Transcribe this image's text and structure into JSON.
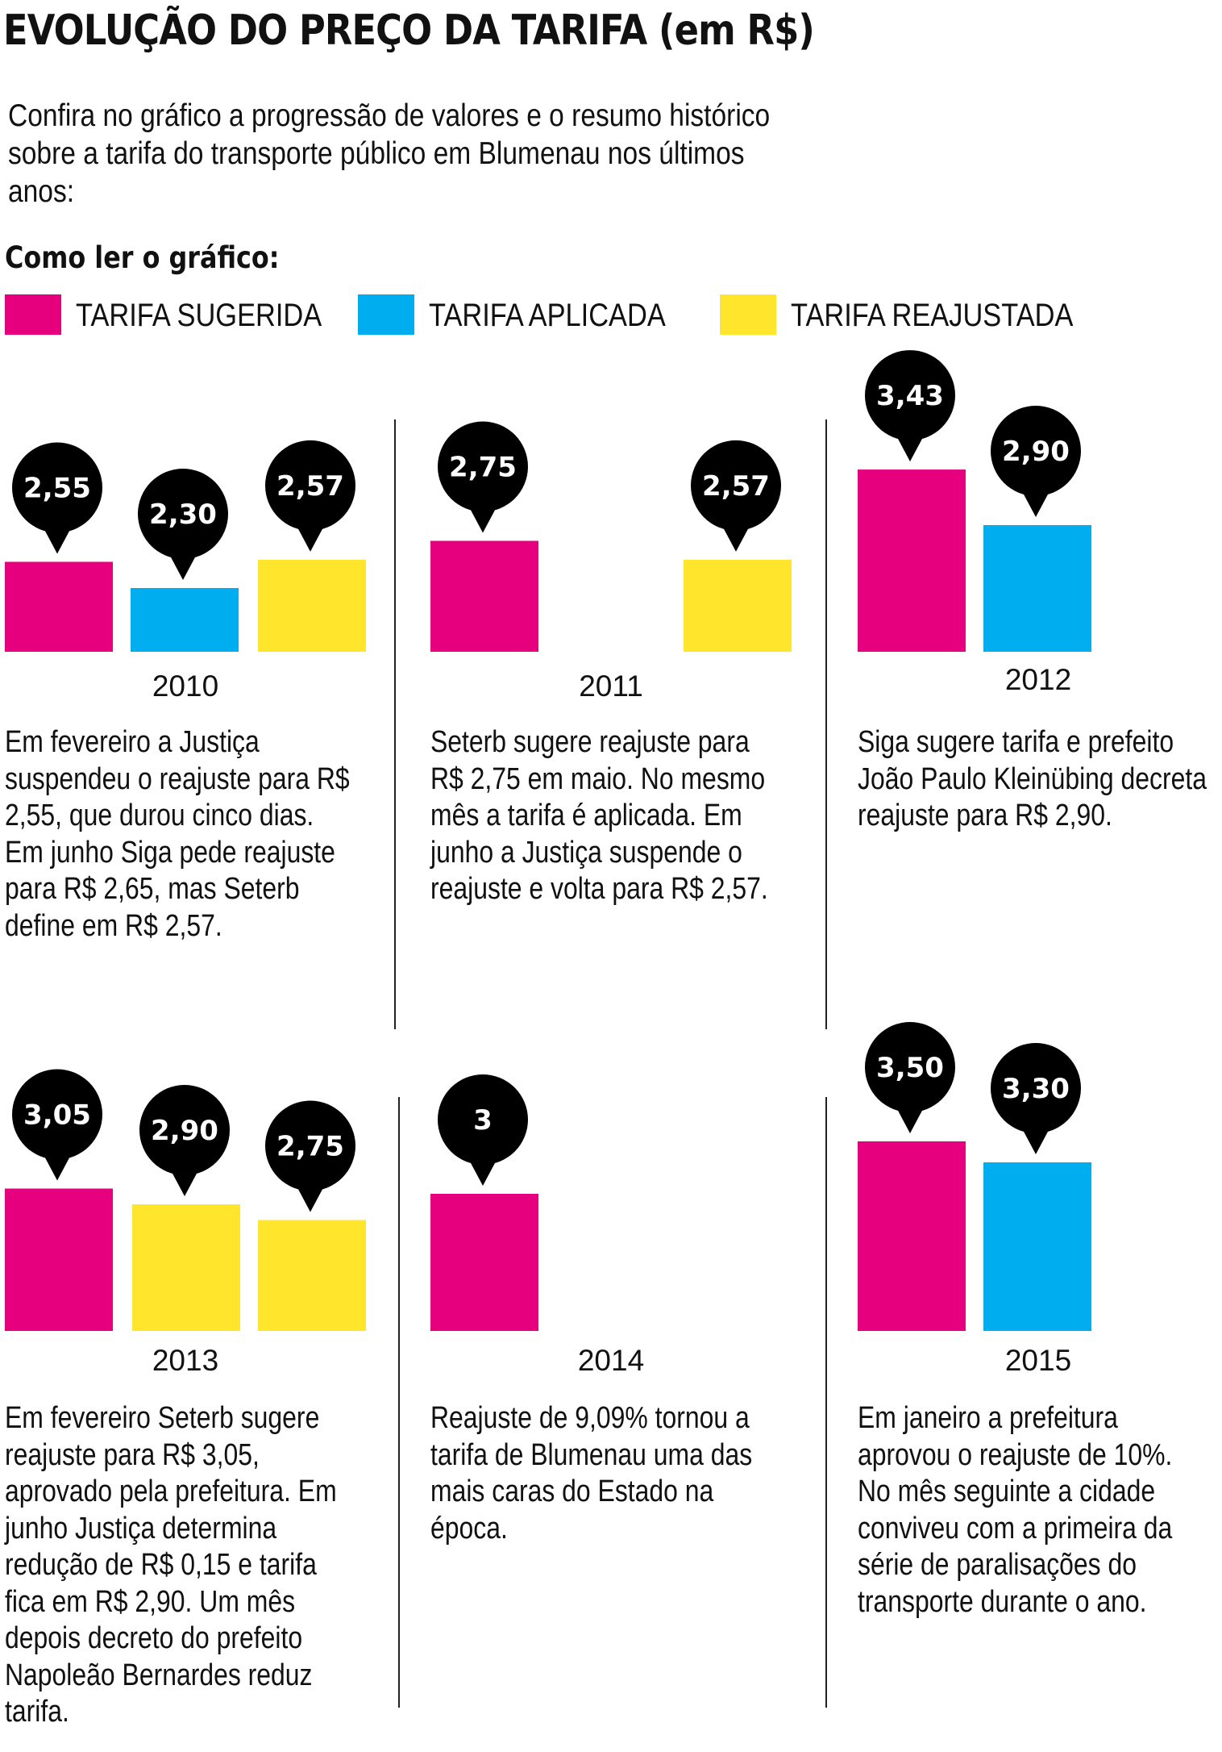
{
  "header": {
    "title": "EVOLUÇÃO DO PREÇO DA TARIFA (em R$)",
    "intro": "Confira no gráfico a progressão de valores e o resumo histórico sobre a tarifa do transporte público em Blumenau nos últimos anos:"
  },
  "legend": {
    "heading": "Como ler o gráfico:",
    "items": [
      {
        "label": "TARIFA SUGERIDA",
        "color": "#e6007e"
      },
      {
        "label": "TARIFA APLICADA",
        "color": "#00aeef"
      },
      {
        "label": "TARIFA REAJUSTADA",
        "color": "#ffe52b"
      }
    ]
  },
  "chart_data": {
    "type": "bar",
    "title": "EVOLUÇÃO DO PREÇO DA TARIFA (em R$)",
    "series_names": [
      "TARIFA SUGERIDA",
      "TARIFA APLICADA",
      "TARIFA REAJUSTADA"
    ],
    "colors": {
      "TARIFA SUGERIDA": "#e6007e",
      "TARIFA APLICADA": "#00aeef",
      "TARIFA REAJUSTADA": "#ffe52b"
    },
    "years": [
      {
        "year": "2010",
        "bars": [
          {
            "series": "TARIFA SUGERIDA",
            "value": 2.55,
            "label": "2,55"
          },
          {
            "series": "TARIFA APLICADA",
            "value": 2.3,
            "label": "2,30"
          },
          {
            "series": "TARIFA REAJUSTADA",
            "value": 2.57,
            "label": "2,57"
          }
        ],
        "text": "Em fevereiro a Justiça suspendeu o reajuste para R$ 2,55, que durou cinco dias. Em junho Siga pede reajuste para R$ 2,65, mas Seterb define em R$ 2,57."
      },
      {
        "year": "2011",
        "bars": [
          {
            "series": "TARIFA SUGERIDA",
            "value": 2.75,
            "label": "2,75"
          },
          {
            "series": "TARIFA REAJUSTADA",
            "value": 2.57,
            "label": "2,57"
          }
        ],
        "text": "Seterb sugere reajuste para R$ 2,75 em maio. No mesmo mês a tarifa é aplicada. Em junho a Justiça suspende o reajuste e volta para R$ 2,57."
      },
      {
        "year": "2012",
        "bars": [
          {
            "series": "TARIFA SUGERIDA",
            "value": 3.43,
            "label": "3,43"
          },
          {
            "series": "TARIFA APLICADA",
            "value": 2.9,
            "label": "2,90"
          }
        ],
        "text": "Siga sugere tarifa e prefeito João Paulo Kleinübing decreta reajuste para R$ 2,90."
      },
      {
        "year": "2013",
        "bars": [
          {
            "series": "TARIFA SUGERIDA",
            "value": 3.05,
            "label": "3,05"
          },
          {
            "series": "TARIFA REAJUSTADA",
            "value": 2.9,
            "label": "2,90"
          },
          {
            "series": "TARIFA REAJUSTADA",
            "value": 2.75,
            "label": "2,75"
          }
        ],
        "text": "Em fevereiro Seterb sugere reajuste para R$ 3,05, aprovado pela prefeitura. Em junho Justiça determina redução de R$ 0,15 e tarifa fica em R$ 2,90. Um mês depois decreto do prefeito Napoleão Bernardes reduz tarifa."
      },
      {
        "year": "2014",
        "bars": [
          {
            "series": "TARIFA SUGERIDA",
            "value": 3.0,
            "label": "3"
          }
        ],
        "text": "Reajuste de 9,09% tornou a tarifa de Blumenau uma das mais caras do Estado na época."
      },
      {
        "year": "2015",
        "bars": [
          {
            "series": "TARIFA SUGERIDA",
            "value": 3.5,
            "label": "3,50"
          },
          {
            "series": "TARIFA APLICADA",
            "value": 3.3,
            "label": "3,30"
          }
        ],
        "text": "Em janeiro a prefeitura aprovou o reajuste de 10%. No mês seguinte a cidade conviveu com a primeira da série de paralisações do transporte durante o ano."
      }
    ]
  }
}
